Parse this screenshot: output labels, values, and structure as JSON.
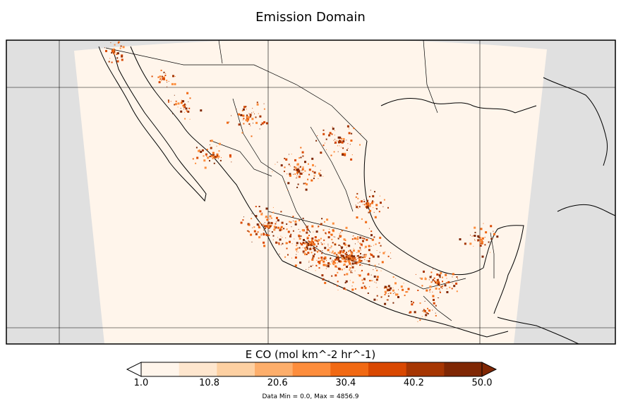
{
  "figure": {
    "title": "Emission Domain",
    "stats": "Data Min = 0.0, Max = 4856.9"
  },
  "colorbar": {
    "label": "E CO (mol km^-2 hr^-1)",
    "ticks": [
      "1.0",
      "10.8",
      "20.6",
      "30.4",
      "40.2",
      "50.0"
    ],
    "range": [
      1.0,
      50.0
    ],
    "extend": "both",
    "colors": [
      "#fff5eb",
      "#fee6ce",
      "#fdd0a2",
      "#fdae6b",
      "#fd8d3c",
      "#f16913",
      "#d94801",
      "#a63603",
      "#7f2704"
    ],
    "under_color": "#ffffff",
    "over_color": "#7f2704"
  },
  "map": {
    "ocean_color": "#ffffff",
    "outside_domain_color": "#e0e0e0",
    "low_emission_color": "#fff5eb",
    "coastline_color": "#000000"
  }
}
